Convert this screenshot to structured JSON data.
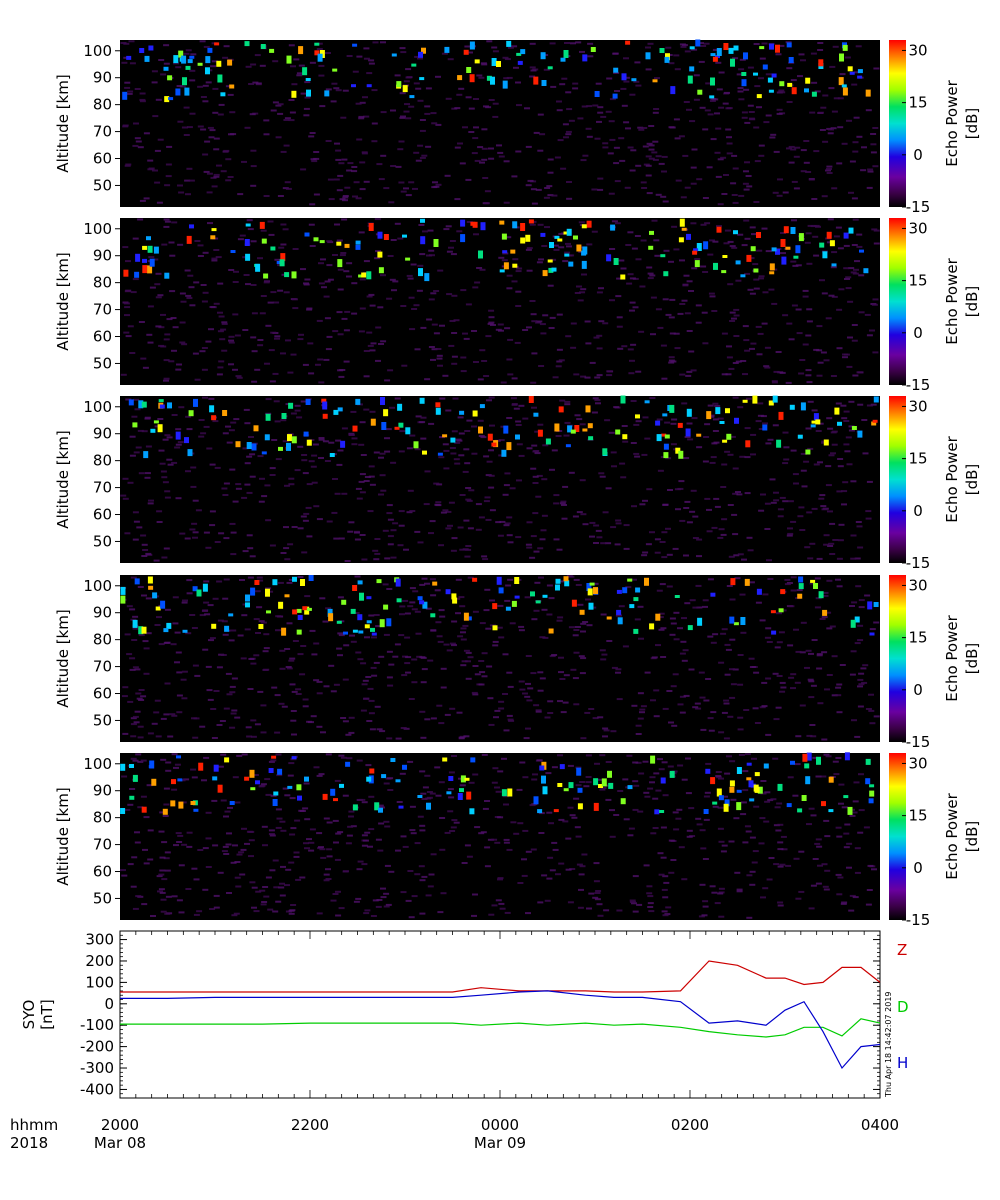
{
  "footer": {
    "time_label": "hhmm",
    "year_label": "2018",
    "ticks": [
      {
        "label": "2000",
        "date": "Mar 08"
      },
      {
        "label": "2200",
        "date": ""
      },
      {
        "label": "0000",
        "date": "Mar 09"
      },
      {
        "label": "0200",
        "date": ""
      },
      {
        "label": "0400",
        "date": ""
      }
    ]
  },
  "timestamp": "Thu Apr 18 14:42:07 2019",
  "chart_data": [
    {
      "type": "heatmap",
      "panel": 1,
      "x_range": [
        "2018-03-08 20:00",
        "2018-03-09 04:00"
      ],
      "ylabel": "Altitude [km]",
      "yticks": [
        50,
        60,
        70,
        80,
        90,
        100
      ],
      "ylim": [
        42,
        104
      ],
      "colorbar": {
        "label": "Echo Power [dB]",
        "ticks": [
          -15,
          0,
          15,
          30
        ],
        "range": [
          -15,
          33
        ],
        "colormap": "rainbow"
      }
    },
    {
      "type": "heatmap",
      "panel": 2,
      "x_range": [
        "2018-03-08 20:00",
        "2018-03-09 04:00"
      ],
      "ylabel": "Altitude [km]",
      "yticks": [
        50,
        60,
        70,
        80,
        90,
        100
      ],
      "ylim": [
        42,
        104
      ],
      "colorbar": {
        "label": "Echo Power [dB]",
        "ticks": [
          -15,
          0,
          15,
          30
        ],
        "range": [
          -15,
          33
        ],
        "colormap": "rainbow"
      }
    },
    {
      "type": "heatmap",
      "panel": 3,
      "x_range": [
        "2018-03-08 20:00",
        "2018-03-09 04:00"
      ],
      "ylabel": "Altitude [km]",
      "yticks": [
        50,
        60,
        70,
        80,
        90,
        100
      ],
      "ylim": [
        42,
        104
      ],
      "colorbar": {
        "label": "Echo Power [dB]",
        "ticks": [
          -15,
          0,
          15,
          30
        ],
        "range": [
          -15,
          33
        ],
        "colormap": "rainbow"
      }
    },
    {
      "type": "heatmap",
      "panel": 4,
      "x_range": [
        "2018-03-08 20:00",
        "2018-03-09 04:00"
      ],
      "ylabel": "Altitude [km]",
      "yticks": [
        50,
        60,
        70,
        80,
        90,
        100
      ],
      "ylim": [
        42,
        104
      ],
      "colorbar": {
        "label": "Echo Power [dB]",
        "ticks": [
          -15,
          0,
          15,
          30
        ],
        "range": [
          -15,
          33
        ],
        "colormap": "rainbow"
      }
    },
    {
      "type": "heatmap",
      "panel": 5,
      "x_range": [
        "2018-03-08 20:00",
        "2018-03-09 04:00"
      ],
      "ylabel": "Altitude [km]",
      "yticks": [
        50,
        60,
        70,
        80,
        90,
        100
      ],
      "ylim": [
        42,
        104
      ],
      "colorbar": {
        "label": "Echo Power [dB]",
        "ticks": [
          -15,
          0,
          15,
          30
        ],
        "range": [
          -15,
          33
        ],
        "colormap": "rainbow"
      }
    },
    {
      "type": "line",
      "panel": "magnetometer",
      "ylabel": "SYO [nT]",
      "ylim": [
        -440,
        340
      ],
      "yticks": [
        -400,
        -300,
        -200,
        -100,
        0,
        100,
        200,
        300
      ],
      "x_hours": [
        0,
        0.5,
        1,
        1.5,
        2,
        2.5,
        3,
        3.5,
        3.8,
        4.2,
        4.5,
        4.9,
        5.2,
        5.5,
        5.9,
        6.2,
        6.5,
        6.8,
        7.0,
        7.2,
        7.4,
        7.6,
        7.8,
        8.0
      ],
      "series": [
        {
          "name": "Z",
          "color": "#cc0000",
          "values": [
            55,
            55,
            55,
            55,
            55,
            55,
            55,
            55,
            75,
            60,
            60,
            60,
            55,
            55,
            60,
            200,
            180,
            120,
            120,
            90,
            100,
            170,
            170,
            100
          ]
        },
        {
          "name": "D",
          "color": "#00cc00",
          "values": [
            -95,
            -95,
            -95,
            -95,
            -90,
            -90,
            -90,
            -90,
            -100,
            -90,
            -100,
            -90,
            -100,
            -95,
            -110,
            -130,
            -145,
            -155,
            -145,
            -110,
            -110,
            -150,
            -70,
            -90
          ]
        },
        {
          "name": "H",
          "color": "#0000cc",
          "values": [
            25,
            25,
            30,
            30,
            30,
            30,
            30,
            30,
            40,
            55,
            60,
            40,
            30,
            30,
            10,
            -90,
            -80,
            -100,
            -30,
            10,
            -130,
            -300,
            -200,
            -190
          ]
        }
      ]
    }
  ]
}
